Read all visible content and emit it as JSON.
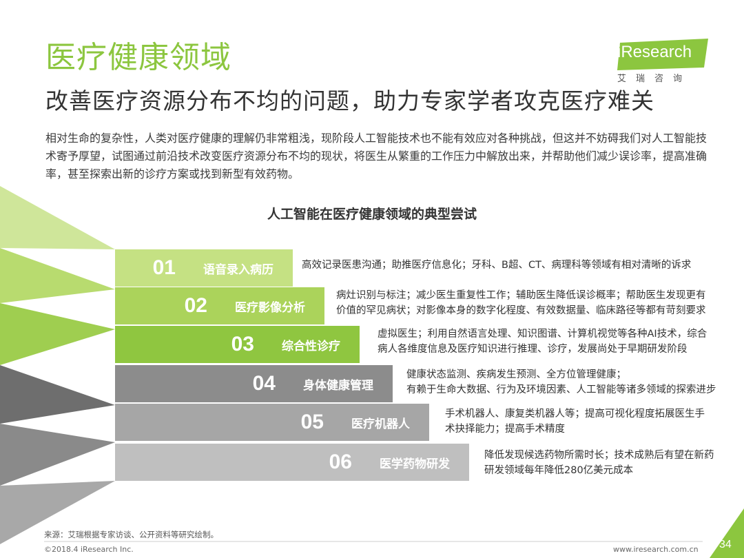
{
  "header": {
    "title": "医疗健康领域",
    "subtitle": "改善医疗资源分布不均的问题，助力专家学者攻克医疗难关",
    "intro": "相对生命的复杂性，人类对医疗健康的理解仍非常粗浅，现阶段人工智能技术也不能有效应对各种挑战，但这并不妨碍我们对人工智能技术寄予厚望，试图通过前沿技术改变医疗资源分布不均的现状，将医生从繁重的工作压力中解放出来，并帮助他们减少误诊率，提高准确率，甚至探索出新的诊疗方案或找到新型有效药物。"
  },
  "logo": {
    "en": "iResearch",
    "cn": "艾瑞咨询"
  },
  "chart": {
    "title": "人工智能在医疗健康领域的典型尝试",
    "steps": [
      {
        "num": "01",
        "name": "语音录入病历",
        "desc": [
          "高效记录医患沟通；助推医疗信息化；牙科、B超、CT、病理科等领域有相对清晰的诉求"
        ],
        "color": "#c5e183"
      },
      {
        "num": "02",
        "name": "医疗影像分析",
        "desc": [
          "病灶识别与标注；减少医生重复性工作；辅助医生降低误诊概率；帮助医生发现更有",
          "价值的罕见病状；对影像本身的数字化程度、有效数据量、临床路径等都有苛刻要求"
        ],
        "color": "#abd35b"
      },
      {
        "num": "03",
        "name": "综合性诊疗",
        "desc": [
          "虚拟医生；利用自然语言处理、知识图谱、计算机视觉等各种AI技术，综合",
          "病人各维度信息及医疗知识进行推理、诊疗，发展尚处于早期研发阶段"
        ],
        "color": "#8fc640"
      },
      {
        "num": "04",
        "name": "身体健康管理",
        "desc": [
          "健康状态监测、疾病发生预测、全方位管理健康；",
          "有赖于生命大数据、行为及环境因素、人工智能等诸多领域的探索进步"
        ],
        "color": "#8c8c8c"
      },
      {
        "num": "05",
        "name": "医疗机器人",
        "desc": [
          "手术机器人、康复类机器人等；提高可视化程度拓展医生手",
          "术抉择能力；提高手术精度"
        ],
        "color": "#a6a6a6"
      },
      {
        "num": "06",
        "name": "医学药物研发",
        "desc": [
          "降低发现候选药物所需时长；技术成熟后有望在新药",
          "研发领域每年降低280亿美元成本"
        ],
        "color": "#bfbfbf"
      }
    ]
  },
  "footer": {
    "source": "来源：艾瑞根据专家访谈、公开资料等研究绘制。",
    "copyright": "©2018.4 iResearch Inc.",
    "site": "www.iresearch.com.cn",
    "page": "34"
  },
  "colors": {
    "accent_green": "#8cc63f",
    "fan_greens": [
      "#cfe69a",
      "#b8db6f",
      "#9fce50"
    ],
    "fan_greys": [
      "#6e6e6e",
      "#8a8a8a",
      "#a8a8a8"
    ]
  }
}
